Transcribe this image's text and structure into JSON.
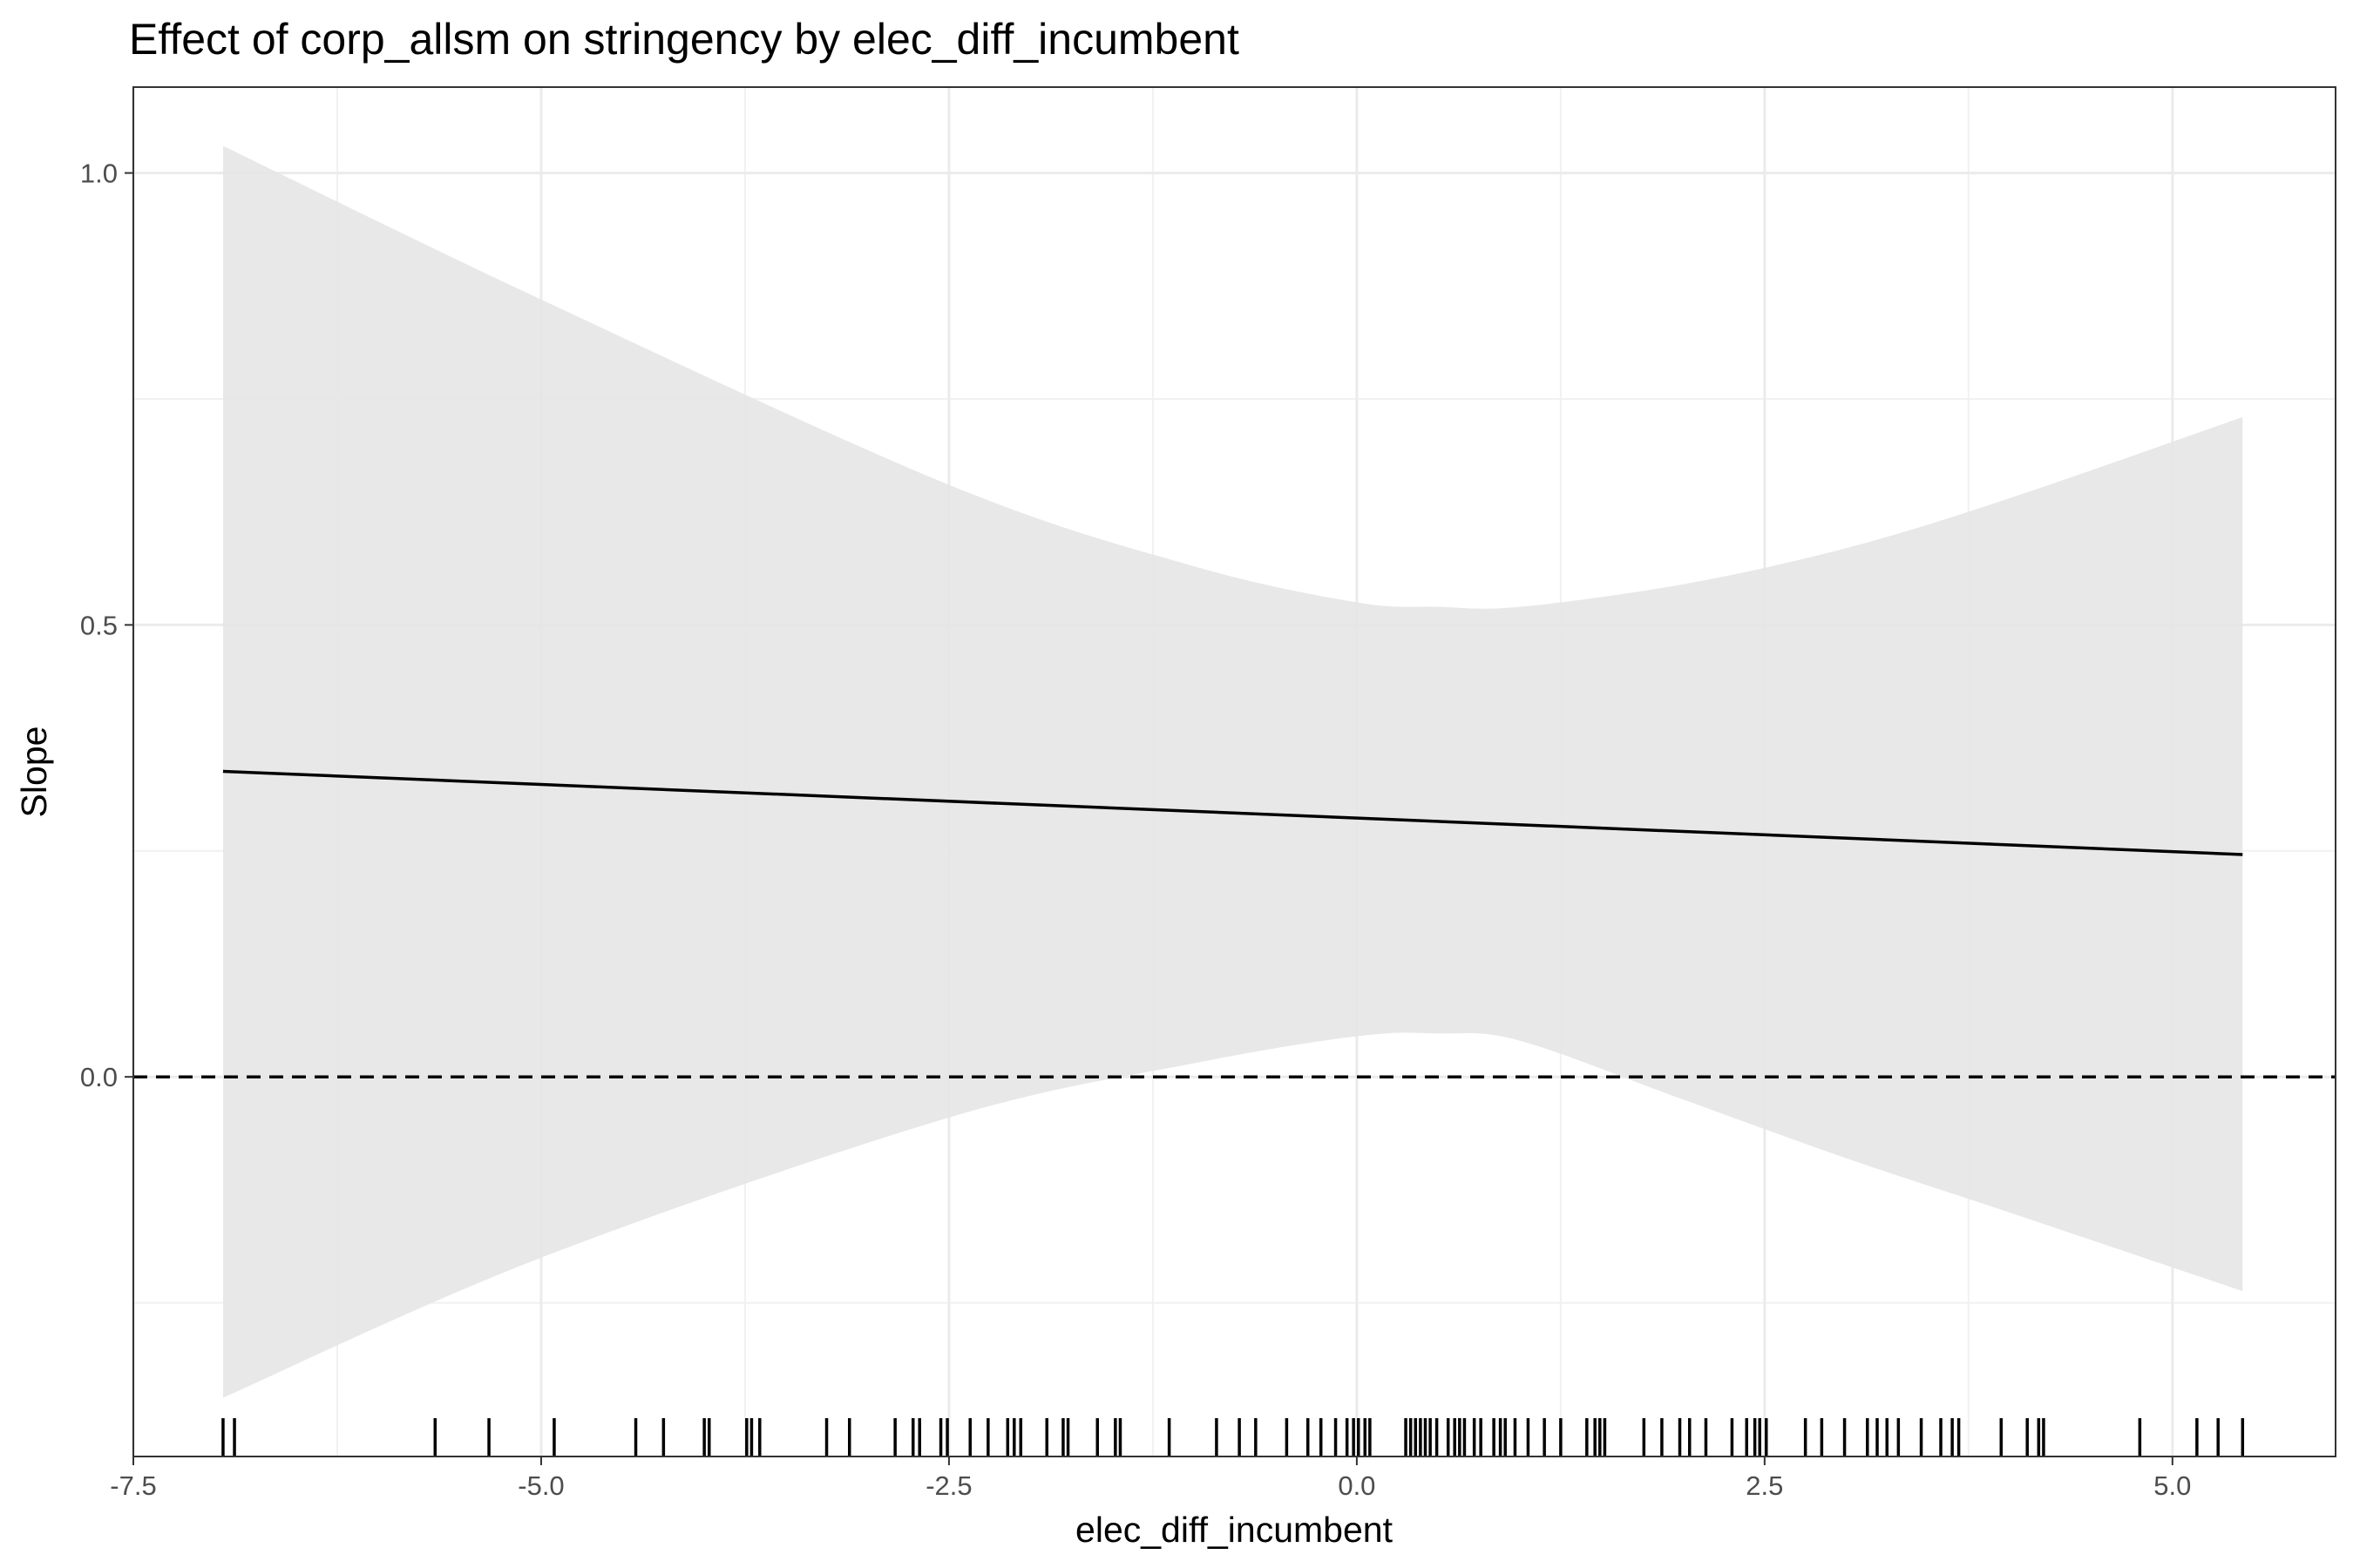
{
  "chart_data": {
    "type": "line",
    "title": "Effect of corp_allsm on stringency by elec_diff_incumbent",
    "xlabel": "elec_diff_incumbent",
    "ylabel": "Slope",
    "xlim": [
      -7.5,
      6.0
    ],
    "ylim": [
      -0.42,
      1.095
    ],
    "x_ticks": [
      -7.5,
      -5.0,
      -2.5,
      0.0,
      2.5,
      5.0
    ],
    "x_tick_labels": [
      "-7.5",
      "-5.0",
      "-2.5",
      "0.0",
      "2.5",
      "5.0"
    ],
    "y_ticks": [
      0.0,
      0.5,
      1.0
    ],
    "y_tick_labels": [
      "0.0",
      "0.5",
      "1.0"
    ],
    "grid": true,
    "reference_line": {
      "y": 0.0,
      "style": "dashed"
    },
    "estimate": {
      "x": [
        -6.95,
        5.43
      ],
      "y": [
        0.338,
        0.246
      ]
    },
    "confidence_band": {
      "x": [
        -6.95,
        -5.0,
        -2.5,
        -1.0,
        0.0,
        0.5,
        1.0,
        2.0,
        3.0,
        4.0,
        5.43
      ],
      "upper": [
        1.03,
        0.86,
        0.655,
        0.565,
        0.525,
        0.52,
        0.52,
        0.545,
        0.585,
        0.64,
        0.73
      ],
      "lower": [
        -0.355,
        -0.2,
        -0.045,
        0.015,
        0.045,
        0.048,
        0.04,
        -0.025,
        -0.09,
        -0.15,
        -0.237
      ]
    },
    "rug": [
      -6.95,
      -6.88,
      -5.65,
      -5.32,
      -4.92,
      -4.42,
      -4.25,
      -4.0,
      -3.97,
      -3.74,
      -3.71,
      -3.66,
      -3.25,
      -3.11,
      -2.83,
      -2.72,
      -2.68,
      -2.55,
      -2.51,
      -2.37,
      -2.26,
      -2.14,
      -2.1,
      -2.06,
      -1.9,
      -1.8,
      -1.77,
      -1.59,
      -1.48,
      -1.45,
      -1.15,
      -0.86,
      -0.72,
      -0.62,
      -0.43,
      -0.3,
      -0.22,
      -0.13,
      -0.06,
      -0.02,
      0.01,
      0.05,
      0.08,
      0.3,
      0.33,
      0.36,
      0.39,
      0.42,
      0.45,
      0.49,
      0.56,
      0.6,
      0.63,
      0.66,
      0.72,
      0.76,
      0.84,
      0.88,
      0.91,
      0.97,
      1.05,
      1.15,
      1.25,
      1.41,
      1.46,
      1.49,
      1.52,
      1.76,
      1.87,
      1.98,
      2.04,
      2.14,
      2.3,
      2.39,
      2.44,
      2.47,
      2.51,
      2.75,
      2.85,
      2.99,
      3.13,
      3.19,
      3.25,
      3.32,
      3.46,
      3.58,
      3.65,
      3.69,
      3.95,
      4.11,
      4.18,
      4.21,
      4.8,
      5.15,
      5.28,
      5.43
    ]
  }
}
